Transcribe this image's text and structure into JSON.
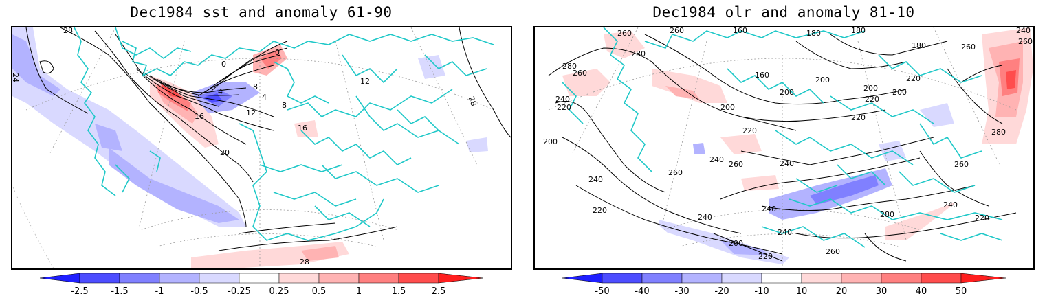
{
  "panels": [
    {
      "title": "Dec1984 sst and anomaly 61-90",
      "contour_labels": [
        "28",
        "24",
        "0",
        "0",
        "4",
        "8",
        "4",
        "8",
        "12",
        "16",
        "16",
        "20",
        "12",
        "28",
        "28"
      ],
      "colorbar": {
        "ticks": [
          "-2.5",
          "-1.5",
          "-1",
          "-0.5",
          "-0.25",
          "0.25",
          "0.5",
          "1",
          "1.5",
          "2.5"
        ],
        "colors": [
          "#1f1fff",
          "#4d4dff",
          "#8080ff",
          "#b3b3ff",
          "#d9d9ff",
          "#ffffff",
          "#ffd9d9",
          "#ffb3b3",
          "#ff8080",
          "#ff4d4d",
          "#ff1f1f"
        ]
      }
    },
    {
      "title": "Dec1984 olr and anomaly 81-10",
      "contour_labels": [
        "260",
        "260",
        "160",
        "180",
        "180",
        "240",
        "260",
        "280",
        "280",
        "260",
        "160",
        "200",
        "200",
        "200",
        "220",
        "220",
        "260",
        "220",
        "240",
        "200",
        "220",
        "200",
        "240",
        "260",
        "240",
        "260",
        "240",
        "220",
        "240",
        "240",
        "200",
        "220",
        "240",
        "260",
        "280",
        "240",
        "220",
        "260",
        "280",
        "220",
        "200",
        "180"
      ],
      "colorbar": {
        "ticks": [
          "-50",
          "-40",
          "-30",
          "-20",
          "-10",
          "10",
          "20",
          "30",
          "40",
          "50"
        ],
        "colors": [
          "#1f1fff",
          "#4d4dff",
          "#8080ff",
          "#b3b3ff",
          "#d9d9ff",
          "#ffffff",
          "#ffd9d9",
          "#ffb3b3",
          "#ff8080",
          "#ff4d4d",
          "#ff1f1f"
        ]
      }
    }
  ]
}
